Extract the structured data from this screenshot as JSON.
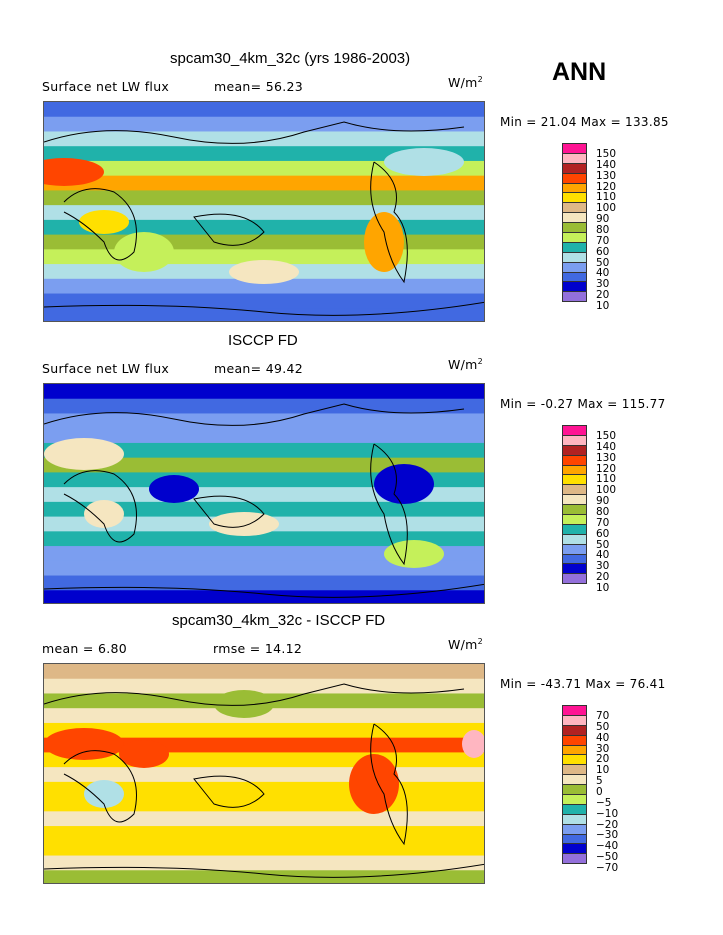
{
  "season": "ANN",
  "units": "W/m",
  "units_sup": "2",
  "palette": [
    "#9370db",
    "#0000cd",
    "#4169e1",
    "#7b9ef0",
    "#b0e0e6",
    "#20b2aa",
    "#c5f05a",
    "#9abd35",
    "#f5e6c0",
    "#deb887",
    "#ffe000",
    "#ffa500",
    "#ff4500",
    "#b22222",
    "#ffb6c1",
    "#ff1493"
  ],
  "panels": [
    {
      "title": "spcam30_4km_32c (yrs 1986-2003)",
      "left": "Surface net LW flux",
      "mid": "mean=  56.23",
      "minmax": "Min =  21.04 Max = 133.85",
      "levels": [
        "10",
        "20",
        "30",
        "40",
        "50",
        "60",
        "70",
        "80",
        "90",
        "100",
        "110",
        "120",
        "130",
        "140",
        "150"
      ]
    },
    {
      "title": "ISCCP FD",
      "left": "Surface net LW flux",
      "mid": "mean=  49.42",
      "minmax": "Min =  -0.27 Max = 115.77",
      "levels": [
        "10",
        "20",
        "30",
        "40",
        "50",
        "60",
        "70",
        "80",
        "90",
        "100",
        "110",
        "120",
        "130",
        "140",
        "150"
      ]
    },
    {
      "title": "spcam30_4km_32c - ISCCP FD",
      "left": "mean =   6.80",
      "mid": "rmse =  14.12",
      "minmax": "Min = -43.71 Max =  76.41",
      "levels": [
        "−70",
        "−50",
        "−40",
        "−30",
        "−20",
        "−10",
        "−5",
        "0",
        "5",
        "10",
        "20",
        "30",
        "40",
        "50",
        "70"
      ]
    }
  ]
}
